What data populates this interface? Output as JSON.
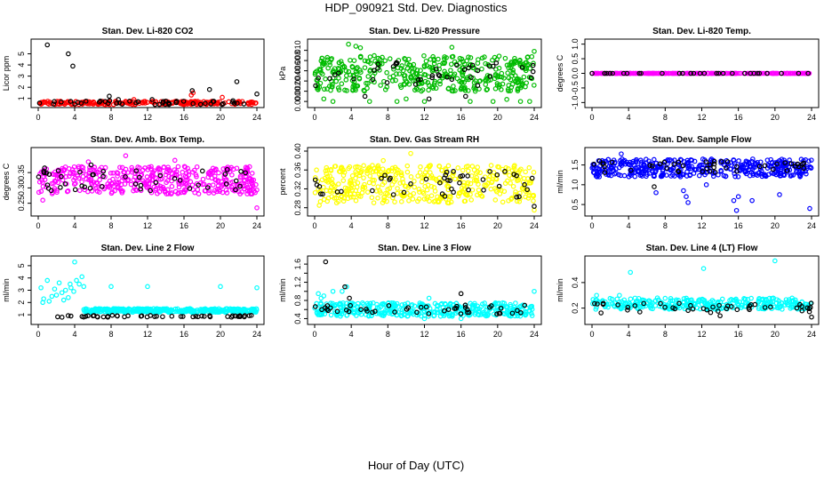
{
  "figure": {
    "title": "HDP_090921  Std. Dev. Diagnostics",
    "xlabel": "Hour of Day (UTC)"
  },
  "chart_data": [
    {
      "type": "scatter",
      "title": "Stan. Dev. Li-820 CO2",
      "ylabel": "Licor ppm",
      "xlim": [
        0,
        24
      ],
      "ylim": [
        0.5,
        6
      ],
      "xticks": [
        0,
        4,
        8,
        12,
        16,
        20,
        24
      ],
      "yticks": [
        1,
        2,
        3,
        4,
        5
      ],
      "series": [
        {
          "color": "#ff0000",
          "band": [
            0.45,
            0.75
          ],
          "count": 240,
          "points": [
            [
              17.0,
              1.5
            ],
            [
              16.8,
              1.3
            ],
            [
              20.2,
              1.1
            ],
            [
              10.5,
              0.9
            ]
          ]
        },
        {
          "color": "#000000",
          "band": [
            0.45,
            0.8
          ],
          "count": 45,
          "points": [
            [
              1.0,
              5.8
            ],
            [
              3.3,
              5.0
            ],
            [
              3.8,
              3.9
            ],
            [
              7.8,
              1.2
            ],
            [
              8.8,
              0.9
            ],
            [
              16.9,
              1.7
            ],
            [
              18.8,
              1.8
            ],
            [
              21.8,
              2.5
            ],
            [
              24.0,
              1.4
            ],
            [
              12.5,
              0.9
            ]
          ]
        }
      ]
    },
    {
      "type": "scatter",
      "title": "Stan. Dev. Li-820 Pressure",
      "ylabel": "kPa",
      "xlim": [
        0,
        24
      ],
      "ylim": [
        -0.0005,
        0.0115
      ],
      "xticks": [
        0,
        4,
        8,
        12,
        16,
        20,
        24
      ],
      "yticks": [
        0.0,
        0.002,
        0.004,
        0.006,
        0.008,
        0.01
      ],
      "ytick_labels": [
        "0.000",
        "0.002",
        "0.004",
        "0.006",
        "0.008",
        "0.010"
      ],
      "series": [
        {
          "color": "#00bb00",
          "band": [
            0.002,
            0.009
          ],
          "count": 420,
          "points": [
            [
              3.7,
              0.0112
            ],
            [
              4.5,
              0.0108
            ],
            [
              5.0,
              0.0105
            ],
            [
              15.0,
              0.0106
            ],
            [
              24.0,
              0.0098
            ],
            [
              2.0,
              0.0
            ],
            [
              6.0,
              0.0
            ],
            [
              9.0,
              0.0
            ],
            [
              12.0,
              0.0
            ],
            [
              17.0,
              0.0
            ],
            [
              19.5,
              0.0
            ],
            [
              22.5,
              0.0
            ],
            [
              23.5,
              0.0
            ],
            [
              1.0,
              0.0005
            ],
            [
              10.0,
              0.0005
            ],
            [
              21.0,
              0.0004
            ]
          ]
        },
        {
          "color": "#000000",
          "band": [
            0.003,
            0.008
          ],
          "count": 40,
          "points": [
            [
              5.5,
              0.001
            ],
            [
              12.5,
              0.0005
            ],
            [
              16.5,
              0.001
            ]
          ]
        }
      ]
    },
    {
      "type": "scatter",
      "title": "Stan. Dev. Li-820 Temp.",
      "ylabel": "degrees C",
      "xlim": [
        0,
        24
      ],
      "ylim": [
        -1.05,
        1.05
      ],
      "xticks": [
        0,
        4,
        8,
        12,
        16,
        20,
        24
      ],
      "yticks": [
        -1.0,
        -0.5,
        0.0,
        0.5,
        1.0
      ],
      "ytick_labels": [
        "-1.0",
        "-0.5",
        "0.0",
        "0.5",
        "1.0"
      ],
      "series": [
        {
          "color": "#ff00ff",
          "band": [
            0.0,
            0.0
          ],
          "count": 300,
          "points": []
        },
        {
          "color": "#000000",
          "band": [
            0.0,
            0.0
          ],
          "count": 30,
          "points": []
        }
      ]
    },
    {
      "type": "scatter",
      "title": "Stan. Dev. Amb. Box Temp.",
      "ylabel": "degrees C",
      "xlim": [
        0,
        24
      ],
      "ylim": [
        0.22,
        0.42
      ],
      "xticks": [
        0,
        4,
        8,
        12,
        16,
        20,
        24
      ],
      "yticks": [
        0.25,
        0.3,
        0.35
      ],
      "ytick_labels": [
        "0.25",
        "0.30",
        "0.35"
      ],
      "series": [
        {
          "color": "#ff00ff",
          "band": [
            0.28,
            0.37
          ],
          "count": 420,
          "points": [
            [
              9.6,
              0.405
            ],
            [
              24.0,
              0.235
            ],
            [
              0.5,
              0.26
            ],
            [
              15.0,
              0.39
            ],
            [
              5.5,
              0.385
            ]
          ]
        },
        {
          "color": "#000000",
          "band": [
            0.29,
            0.36
          ],
          "count": 45,
          "points": [
            [
              5.8,
              0.375
            ],
            [
              0.7,
              0.365
            ]
          ]
        }
      ]
    },
    {
      "type": "scatter",
      "title": "Stan. Dev. Gas Stream RH",
      "ylabel": "percent",
      "xlim": [
        0,
        24
      ],
      "ylim": [
        0.27,
        0.4
      ],
      "xticks": [
        0,
        4,
        8,
        12,
        16,
        20,
        24
      ],
      "yticks": [
        0.28,
        0.32,
        0.36,
        0.4
      ],
      "ytick_labels": [
        "0.28",
        "0.32",
        "0.36",
        "0.40"
      ],
      "series": [
        {
          "color": "#ffff00",
          "band": [
            0.29,
            0.37
          ],
          "count": 420,
          "points": [
            [
              10.5,
              0.395
            ],
            [
              24.0,
              0.275
            ],
            [
              0.5,
              0.285
            ],
            [
              7.5,
              0.38
            ]
          ]
        },
        {
          "color": "#000000",
          "band": [
            0.3,
            0.36
          ],
          "count": 45,
          "points": [
            [
              24.0,
              0.283
            ]
          ]
        }
      ]
    },
    {
      "type": "scatter",
      "title": "Stan. Dev. Sample Flow",
      "ylabel": "ml/min",
      "xlim": [
        0,
        24
      ],
      "ylim": [
        0.3,
        1.85
      ],
      "xticks": [
        0,
        4,
        8,
        12,
        16,
        20,
        24
      ],
      "yticks": [
        0.5,
        1.0,
        1.5
      ],
      "ytick_labels": [
        "0.5",
        "1.0",
        "1.5"
      ],
      "series": [
        {
          "color": "#0000ff",
          "band": [
            1.2,
            1.65
          ],
          "count": 420,
          "points": [
            [
              3.2,
              1.78
            ],
            [
              7.0,
              0.8
            ],
            [
              10.0,
              0.85
            ],
            [
              10.3,
              0.7
            ],
            [
              10.5,
              0.55
            ],
            [
              15.5,
              0.6
            ],
            [
              16.0,
              0.7
            ],
            [
              15.8,
              0.35
            ],
            [
              17.5,
              0.6
            ],
            [
              20.5,
              0.75
            ],
            [
              23.8,
              0.4
            ],
            [
              12.5,
              1.0
            ]
          ]
        },
        {
          "color": "#000000",
          "band": [
            1.3,
            1.6
          ],
          "count": 45,
          "points": [
            [
              6.8,
              0.95
            ]
          ]
        }
      ]
    },
    {
      "type": "scatter",
      "title": "Stan. Dev. Line 2 Flow",
      "ylabel": "ml/min",
      "xlim": [
        0,
        24
      ],
      "ylim": [
        0.5,
        5.5
      ],
      "xticks": [
        0,
        4,
        8,
        12,
        16,
        20,
        24
      ],
      "yticks": [
        1,
        2,
        3,
        4,
        5
      ],
      "series": [
        {
          "color": "#00ffff",
          "band": [
            1.2,
            1.5
          ],
          "count": 380,
          "points": [
            [
              0.3,
              3.2
            ],
            [
              0.6,
              2.3
            ],
            [
              1.0,
              3.8
            ],
            [
              1.5,
              2.5
            ],
            [
              2.0,
              2.6
            ],
            [
              2.3,
              3.6
            ],
            [
              2.6,
              2.8
            ],
            [
              3.0,
              3.0
            ],
            [
              3.3,
              2.4
            ],
            [
              3.6,
              3.2
            ],
            [
              3.9,
              2.9
            ],
            [
              4.2,
              3.8
            ],
            [
              4.5,
              3.5
            ],
            [
              4.8,
              4.1
            ],
            [
              5.0,
              3.3
            ],
            [
              1.2,
              2.1
            ],
            [
              2.8,
              2.2
            ],
            [
              4.0,
              5.3
            ],
            [
              8.0,
              3.3
            ],
            [
              12.0,
              3.3
            ],
            [
              20.0,
              3.3
            ],
            [
              24.0,
              3.2
            ],
            [
              0.5,
              2.0
            ],
            [
              1.8,
              3.1
            ],
            [
              3.5,
              3.5
            ]
          ]
        },
        {
          "color": "#000000",
          "band": [
            0.8,
            0.95
          ],
          "count": 50,
          "points": []
        }
      ]
    },
    {
      "type": "scatter",
      "title": "Stan. Dev. Line 3 Flow",
      "ylabel": "ml/min",
      "xlim": [
        0,
        24
      ],
      "ylim": [
        0.35,
        1.7
      ],
      "xticks": [
        0,
        4,
        8,
        12,
        16,
        20,
        24
      ],
      "yticks": [
        0.4,
        0.6,
        0.8,
        1.0,
        1.2,
        1.4,
        1.6
      ],
      "ytick_labels": [
        "0.4",
        "",
        "0.8",
        "",
        "1.2",
        "",
        "1.6"
      ],
      "series": [
        {
          "color": "#00ffff",
          "band": [
            0.45,
            0.75
          ],
          "count": 400,
          "points": [
            [
              0.4,
              0.95
            ],
            [
              1.0,
              0.9
            ],
            [
              2.0,
              1.0
            ],
            [
              3.0,
              1.0
            ],
            [
              3.5,
              1.1
            ],
            [
              0.7,
              0.85
            ],
            [
              12.5,
              0.85
            ],
            [
              24.0,
              1.0
            ],
            [
              12.0,
              0.4
            ],
            [
              16.0,
              0.4
            ]
          ]
        },
        {
          "color": "#000000",
          "band": [
            0.5,
            0.7
          ],
          "count": 45,
          "points": [
            [
              1.2,
              1.65
            ],
            [
              3.3,
              1.1
            ],
            [
              16.0,
              0.95
            ],
            [
              3.8,
              0.85
            ]
          ]
        }
      ]
    },
    {
      "type": "scatter",
      "title": "Stan. Dev. Line 4 (LT) Flow",
      "ylabel": "ml/min",
      "xlim": [
        0,
        24
      ],
      "ylim": [
        0.1,
        0.58
      ],
      "xticks": [
        0,
        4,
        8,
        12,
        16,
        20,
        24
      ],
      "yticks": [
        0.2,
        0.4
      ],
      "ytick_labels": [
        "0.2",
        "0.4"
      ],
      "series": [
        {
          "color": "#00ffff",
          "band": [
            0.19,
            0.28
          ],
          "count": 320,
          "points": [
            [
              4.2,
              0.48
            ],
            [
              12.2,
              0.51
            ],
            [
              20.0,
              0.57
            ],
            [
              3.0,
              0.3
            ],
            [
              0.5,
              0.3
            ]
          ]
        },
        {
          "color": "#000000",
          "band": [
            0.16,
            0.24
          ],
          "count": 45,
          "points": [
            [
              24.0,
              0.13
            ],
            [
              14.0,
              0.14
            ]
          ]
        }
      ]
    }
  ]
}
